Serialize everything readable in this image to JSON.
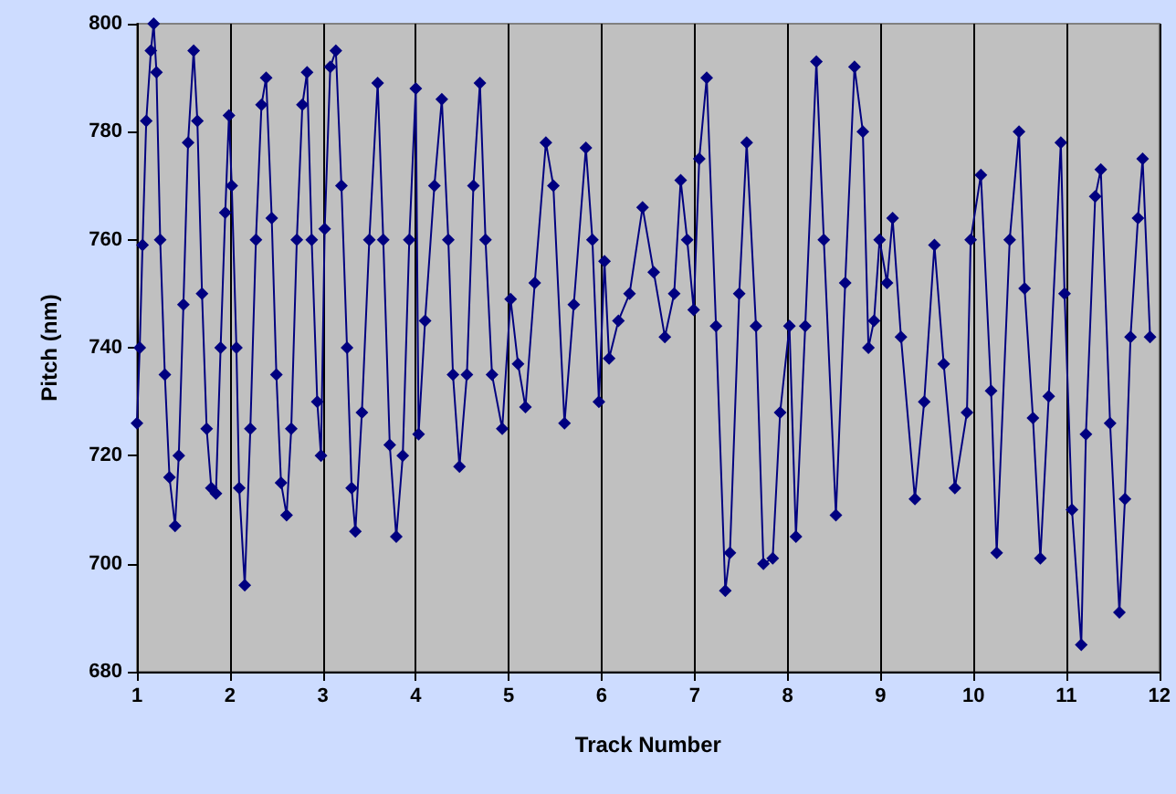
{
  "chart_data": {
    "type": "line",
    "xlabel": "Track Number",
    "ylabel": "Pitch (nm)",
    "xlim": [
      1,
      12
    ],
    "xticks": [
      1,
      2,
      3,
      4,
      5,
      6,
      7,
      8,
      9,
      10,
      11,
      12
    ],
    "ylim": [
      680,
      800
    ],
    "yticks": [
      680,
      700,
      720,
      740,
      760,
      780,
      800
    ],
    "grid": "x",
    "marker": "diamond",
    "line_style": "solid",
    "series": [
      {
        "color": "#000080",
        "x": [
          1.0,
          1.03,
          1.06,
          1.1,
          1.15,
          1.18,
          1.21,
          1.25,
          1.3,
          1.35,
          1.41,
          1.45,
          1.5,
          1.55,
          1.61,
          1.65,
          1.7,
          1.75,
          1.8,
          1.85,
          1.9,
          1.95,
          1.99,
          2.02,
          2.07,
          2.1,
          2.16,
          2.22,
          2.28,
          2.34,
          2.39,
          2.45,
          2.5,
          2.55,
          2.61,
          2.66,
          2.72,
          2.78,
          2.83,
          2.88,
          2.94,
          2.98,
          3.02,
          3.08,
          3.14,
          3.2,
          3.26,
          3.31,
          3.35,
          3.42,
          3.5,
          3.59,
          3.65,
          3.72,
          3.79,
          3.86,
          3.93,
          4.0,
          4.03,
          4.1,
          4.2,
          4.28,
          4.35,
          4.4,
          4.47,
          4.55,
          4.62,
          4.69,
          4.75,
          4.82,
          4.93,
          5.02,
          5.1,
          5.18,
          5.28,
          5.4,
          5.48,
          5.6,
          5.7,
          5.83,
          5.9,
          5.97,
          6.03,
          6.08,
          6.18,
          6.3,
          6.44,
          6.56,
          6.68,
          6.78,
          6.85,
          6.92,
          6.99,
          7.05,
          7.13,
          7.23,
          7.33,
          7.38,
          7.48,
          7.56,
          7.66,
          7.74,
          7.84,
          7.92,
          8.02,
          8.09,
          8.19,
          8.31,
          8.39,
          8.52,
          8.62,
          8.72,
          8.81,
          8.87,
          8.93,
          8.99,
          9.07,
          9.13,
          9.22,
          9.37,
          9.47,
          9.58,
          9.68,
          9.8,
          9.93,
          9.97,
          10.08,
          10.19,
          10.25,
          10.39,
          10.49,
          10.55,
          10.64,
          10.72,
          10.81,
          10.94,
          10.98,
          11.06,
          11.16,
          11.21,
          11.31,
          11.37,
          11.47,
          11.57,
          11.63,
          11.69,
          11.77,
          11.82,
          11.9
        ],
        "values": [
          726,
          740,
          759,
          782,
          795,
          800,
          791,
          760,
          735,
          716,
          707,
          720,
          748,
          778,
          795,
          782,
          750,
          725,
          714,
          713,
          740,
          765,
          783,
          770,
          740,
          714,
          696,
          725,
          760,
          785,
          790,
          764,
          735,
          715,
          709,
          725,
          760,
          785,
          791,
          760,
          730,
          720,
          762,
          792,
          795,
          770,
          740,
          714,
          706,
          728,
          760,
          789,
          760,
          722,
          705,
          720,
          760,
          788,
          724,
          745,
          770,
          786,
          760,
          735,
          718,
          735,
          770,
          789,
          760,
          735,
          725,
          749,
          737,
          729,
          752,
          778,
          770,
          726,
          748,
          777,
          760,
          730,
          756,
          738,
          745,
          750,
          766,
          754,
          742,
          750,
          771,
          760,
          747,
          775,
          790,
          744,
          695,
          702,
          750,
          778,
          744,
          700,
          701,
          728,
          744,
          705,
          744,
          793,
          760,
          709,
          752,
          792,
          780,
          740,
          745,
          760,
          752,
          764,
          742,
          712,
          730,
          759,
          737,
          714,
          728,
          760,
          772,
          732,
          702,
          760,
          780,
          751,
          727,
          701,
          731,
          778,
          750,
          710,
          685,
          724,
          768,
          773,
          726,
          691,
          712,
          742,
          764,
          775,
          742
        ]
      }
    ]
  }
}
